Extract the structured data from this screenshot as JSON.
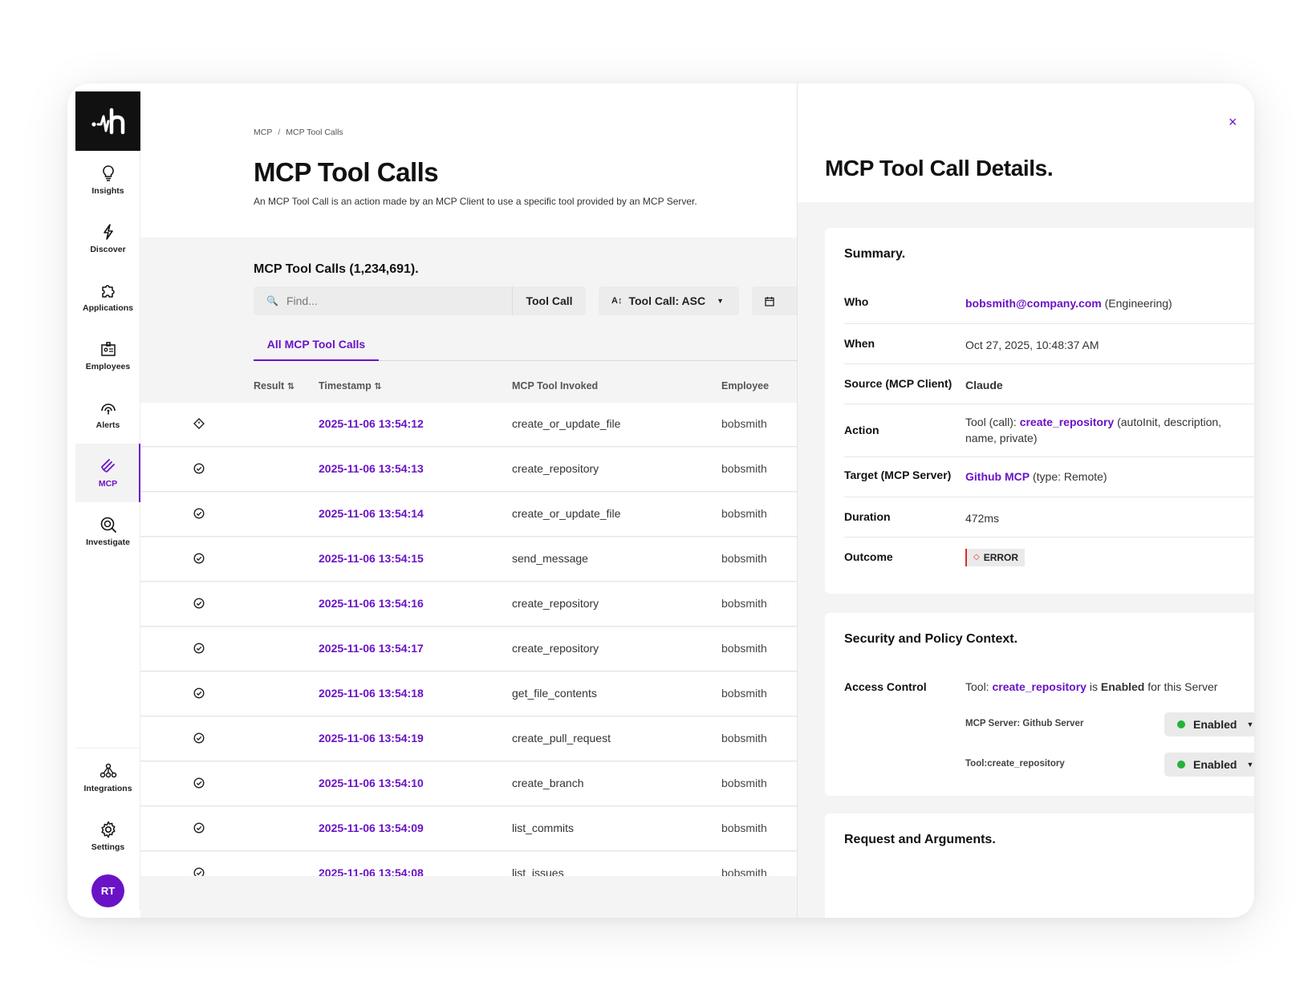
{
  "sidebar": {
    "items": [
      {
        "label": "Insights",
        "icon": "lightbulb-icon"
      },
      {
        "label": "Discover",
        "icon": "lightning-icon"
      },
      {
        "label": "Applications",
        "icon": "puzzle-icon"
      },
      {
        "label": "Employees",
        "icon": "id-badge-icon"
      },
      {
        "label": "Alerts",
        "icon": "radar-icon"
      },
      {
        "label": "MCP",
        "icon": "mcp-icon",
        "active": true
      },
      {
        "label": "Investigate",
        "icon": "magnifier-icon"
      }
    ],
    "bottom_items": [
      {
        "label": "Integrations",
        "icon": "network-icon"
      },
      {
        "label": "Settings",
        "icon": "gear-icon"
      }
    ],
    "avatar": "RT",
    "accent_color": "#6a13c6"
  },
  "breadcrumb": [
    "MCP",
    "/",
    "MCP Tool Calls"
  ],
  "page": {
    "title": "MCP Tool Calls",
    "description": "An MCP Tool Call is an action made by an MCP Client to use a specific tool provided by an MCP Server.",
    "count_title": "MCP Tool Calls (1,234,691).",
    "search_placeholder": "Find...",
    "search_mode": "Tool Call",
    "sort_label": "Tool Call: ASC",
    "tab": "All MCP Tool Calls"
  },
  "table": {
    "columns": [
      "Result",
      "Timestamp",
      "MCP Tool Invoked",
      "Employee"
    ],
    "rows": [
      {
        "result": "error",
        "timestamp": "2025-11-06 13:54:12",
        "tool": "create_or_update_file",
        "employee": "bobsmith"
      },
      {
        "result": "success",
        "timestamp": "2025-11-06 13:54:13",
        "tool": "create_repository",
        "employee": "bobsmith"
      },
      {
        "result": "success",
        "timestamp": "2025-11-06 13:54:14",
        "tool": "create_or_update_file",
        "employee": "bobsmith"
      },
      {
        "result": "success",
        "timestamp": "2025-11-06 13:54:15",
        "tool": "send_message",
        "employee": "bobsmith"
      },
      {
        "result": "success",
        "timestamp": "2025-11-06 13:54:16",
        "tool": "create_repository",
        "employee": "bobsmith"
      },
      {
        "result": "success",
        "timestamp": "2025-11-06 13:54:17",
        "tool": "create_repository",
        "employee": "bobsmith"
      },
      {
        "result": "success",
        "timestamp": "2025-11-06 13:54:18",
        "tool": "get_file_contents",
        "employee": "bobsmith"
      },
      {
        "result": "success",
        "timestamp": "2025-11-06 13:54:19",
        "tool": "create_pull_request",
        "employee": "bobsmith"
      },
      {
        "result": "success",
        "timestamp": "2025-11-06 13:54:10",
        "tool": "create_branch",
        "employee": "bobsmith"
      },
      {
        "result": "success",
        "timestamp": "2025-11-06 13:54:09",
        "tool": "list_commits",
        "employee": "bobsmith"
      },
      {
        "result": "success",
        "timestamp": "2025-11-06 13:54:08",
        "tool": "list_issues",
        "employee": "bobsmith"
      }
    ]
  },
  "details": {
    "title": "MCP Tool Call Details.",
    "close": "×",
    "summary": {
      "title": "Summary.",
      "who_label": "Who",
      "who_email": "bobsmith@company.com",
      "who_dept": "(Engineering)",
      "when_label": "When",
      "when_value": "Oct 27, 2025, 10:48:37 AM",
      "source_label": "Source (MCP Client)",
      "source_value": "Claude",
      "action_label": "Action",
      "action_prefix": "Tool (call):",
      "action_tool": "create_repository",
      "action_args": "(autoInit, description, name, private)",
      "target_label": "Target (MCP Server)",
      "target_value": "Github MCP",
      "target_type": "(type: Remote)",
      "duration_label": "Duration",
      "duration_value": "472ms",
      "outcome_label": "Outcome",
      "outcome_value": "ERROR"
    },
    "security": {
      "title": "Security and Policy Context.",
      "access_label": "Access Control",
      "access_prefix": "Tool:",
      "access_tool": "create_repository",
      "access_is": "is",
      "access_enabled": "Enabled",
      "access_suffix": "for this Server",
      "server_label": "MCP Server: Github Server",
      "server_state": "Enabled",
      "tool_label": "Tool:create_repository",
      "tool_state": "Enabled"
    },
    "request": {
      "title": "Request and Arguments."
    }
  }
}
